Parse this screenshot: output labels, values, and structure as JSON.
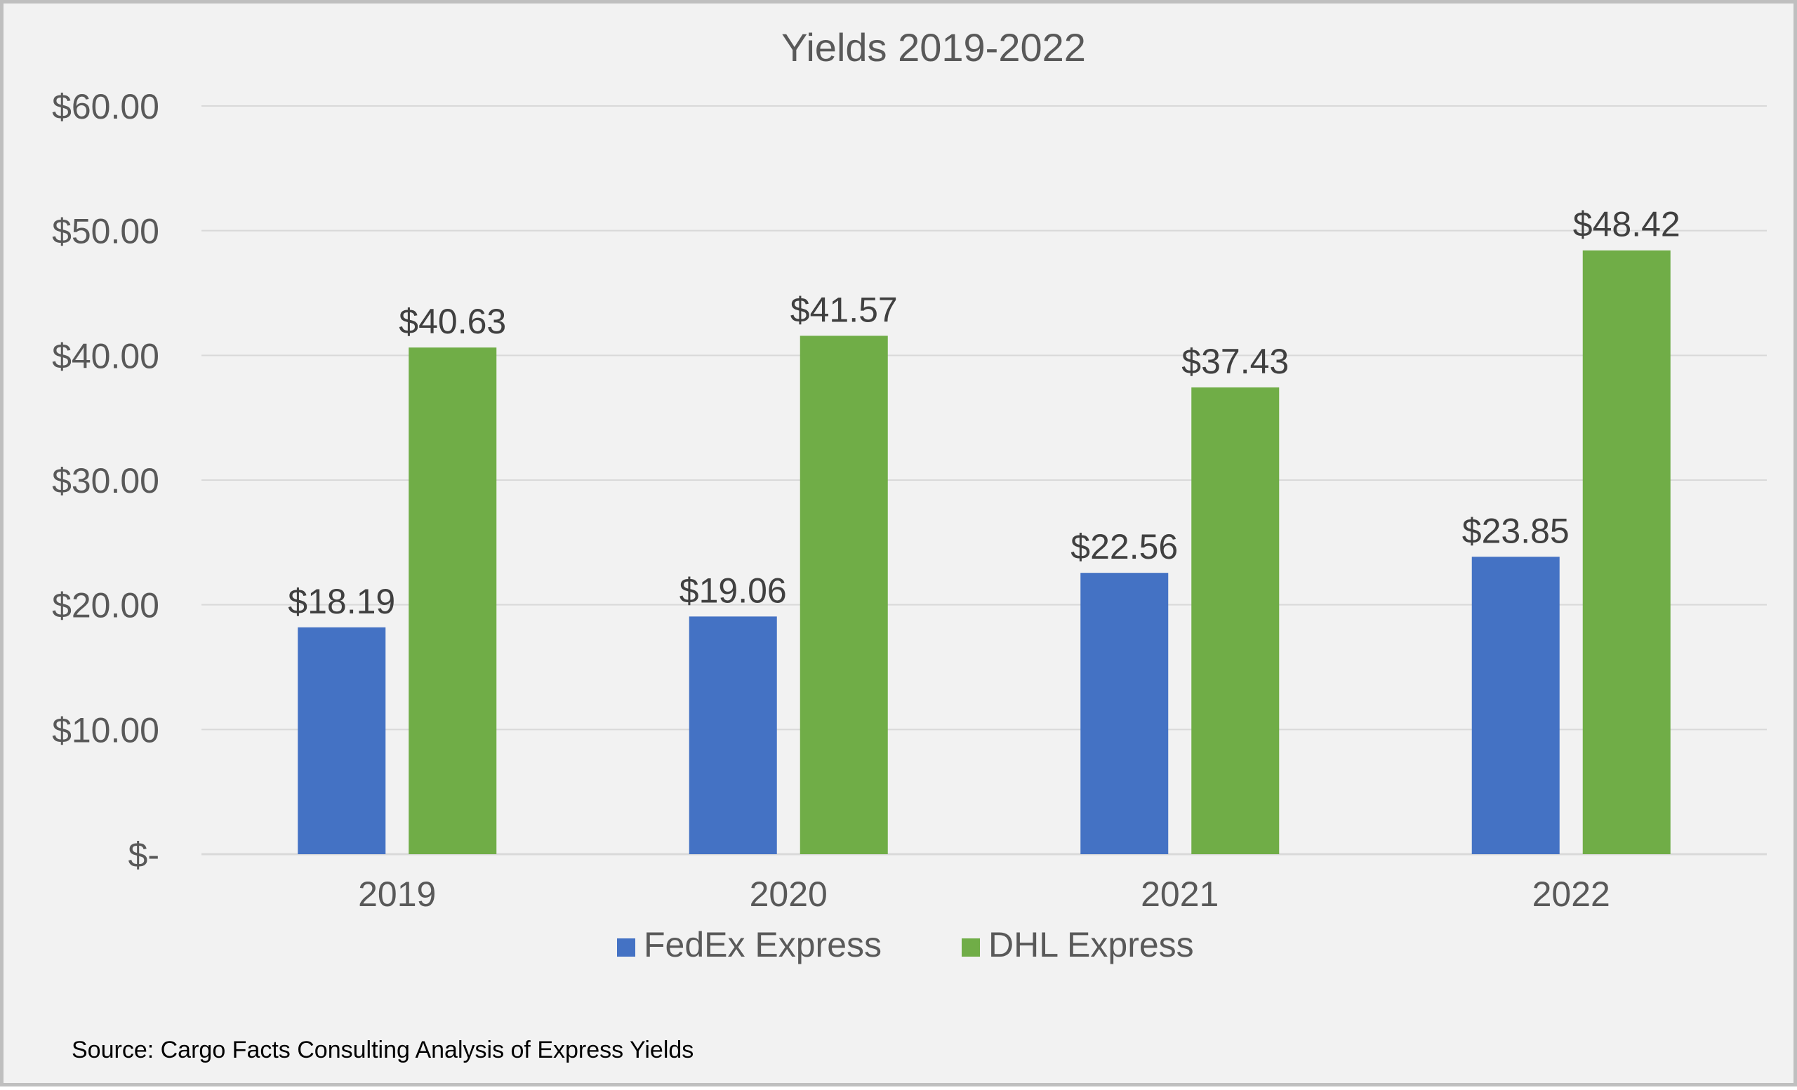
{
  "chart_data": {
    "type": "bar",
    "title": "Yields 2019-2022",
    "categories": [
      "2019",
      "2020",
      "2021",
      "2022"
    ],
    "series": [
      {
        "name": "FedEx Express",
        "color": "#4472c4",
        "values": [
          18.19,
          19.06,
          22.56,
          23.85
        ]
      },
      {
        "name": "DHL Express",
        "color": "#70ad47",
        "values": [
          40.63,
          41.57,
          37.43,
          48.42
        ]
      }
    ],
    "data_labels": [
      [
        "$18.19",
        "$19.06",
        "$22.56",
        "$23.85"
      ],
      [
        "$40.63",
        "$41.57",
        "$37.43",
        "$48.42"
      ]
    ],
    "y_ticks": [
      {
        "value": 0,
        "label": "$-"
      },
      {
        "value": 10,
        "label": "$10.00"
      },
      {
        "value": 20,
        "label": "$20.00"
      },
      {
        "value": 30,
        "label": "$30.00"
      },
      {
        "value": 40,
        "label": "$40.00"
      },
      {
        "value": 50,
        "label": "$50.00"
      },
      {
        "value": 60,
        "label": "$60.00"
      }
    ],
    "ylim": [
      0,
      60
    ],
    "xlabel": "",
    "ylabel": "",
    "grid": true,
    "legend_position": "bottom",
    "source": "Source: Cargo Facts Consulting Analysis of Express Yields"
  }
}
